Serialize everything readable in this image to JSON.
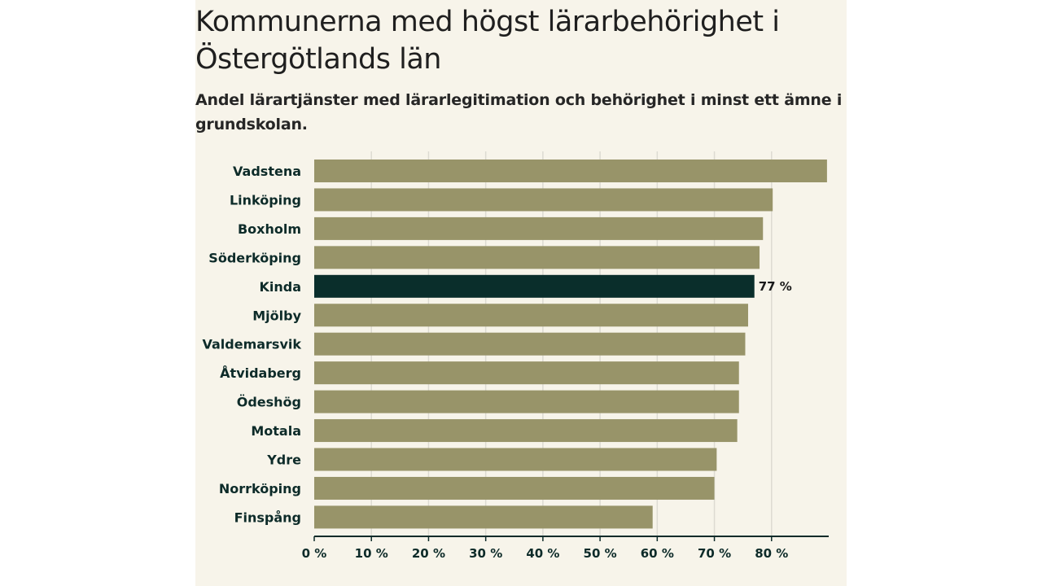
{
  "chart_data": {
    "type": "bar",
    "orientation": "horizontal",
    "title": "Kommunerna med högst lärarbehörighet i Östergötlands län",
    "subtitle": "Andel lärartjänster med lärarlegitimation och behörighet i minst ett ämne i grundskolan.",
    "categories": [
      "Vadstena",
      "Linköping",
      "Boxholm",
      "Söderköping",
      "Kinda",
      "Mjölby",
      "Valdemarsvik",
      "Åtvidaberg",
      "Ödeshög",
      "Motala",
      "Ydre",
      "Norrköping",
      "Finspång"
    ],
    "values": [
      89.7,
      80.2,
      78.5,
      77.9,
      77,
      75.9,
      75.4,
      74.3,
      74.3,
      74,
      70.4,
      70,
      59.2
    ],
    "highlight": {
      "category": "Kinda",
      "label": "77 %"
    },
    "x_ticks": [
      {
        "value": 0,
        "label": "0 %"
      },
      {
        "value": 10,
        "label": "10 %"
      },
      {
        "value": 20,
        "label": "20 %"
      },
      {
        "value": 30,
        "label": "30 %"
      },
      {
        "value": 40,
        "label": "40 %"
      },
      {
        "value": 50,
        "label": "50 %"
      },
      {
        "value": 60,
        "label": "60 %"
      },
      {
        "value": 70,
        "label": "70 %"
      },
      {
        "value": 80,
        "label": "80 %"
      }
    ],
    "xlim": [
      0,
      90
    ],
    "grid": true,
    "xlabel": "",
    "ylabel": ""
  },
  "colors": {
    "bar": "#989469",
    "highlight_bar": "#0a2e2b",
    "background": "#f7f4ea",
    "category_label": "#0d2b29",
    "gridline": "#dddbd2",
    "axis": "#0d2b29"
  }
}
